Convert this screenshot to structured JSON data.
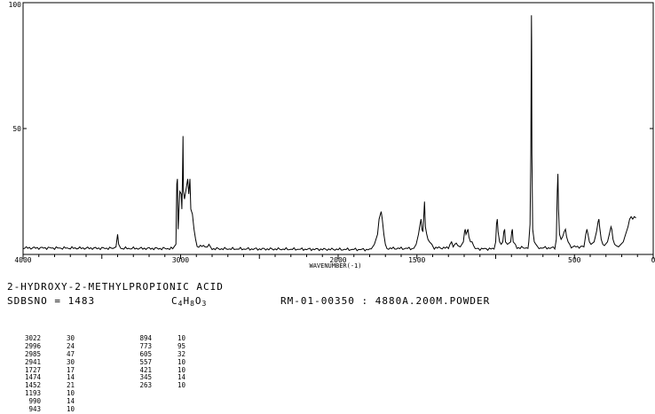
{
  "chart_data": {
    "type": "line",
    "title": "",
    "xlabel": "WAVENUMBER(-1)",
    "ylabel": "",
    "xlim": [
      4000,
      0
    ],
    "ylim": [
      0,
      100
    ],
    "x_ticks": [
      "4000",
      "3000",
      "2000",
      "1500",
      "500",
      "0"
    ],
    "x_tick_values": [
      4000,
      3000,
      2000,
      1500,
      500,
      0
    ],
    "y_ticks": [
      "100",
      "50"
    ],
    "y_tick_values": [
      100,
      50
    ],
    "peaks": [
      {
        "x": 3022,
        "y": 30
      },
      {
        "x": 2996,
        "y": 24
      },
      {
        "x": 2985,
        "y": 47
      },
      {
        "x": 2941,
        "y": 30
      },
      {
        "x": 1727,
        "y": 17
      },
      {
        "x": 1474,
        "y": 14
      },
      {
        "x": 1452,
        "y": 21
      },
      {
        "x": 1193,
        "y": 10
      },
      {
        "x": 990,
        "y": 14
      },
      {
        "x": 943,
        "y": 10
      },
      {
        "x": 894,
        "y": 10
      },
      {
        "x": 773,
        "y": 95
      },
      {
        "x": 605,
        "y": 32
      },
      {
        "x": 557,
        "y": 10
      },
      {
        "x": 421,
        "y": 10
      },
      {
        "x": 345,
        "y": 14
      },
      {
        "x": 263,
        "y": 10
      }
    ]
  },
  "compound_name": "2-HYDROXY-2-METHYLPROPIONIC ACID",
  "sdbs_label": "SDBSNO = 1483",
  "formula": {
    "c": "C",
    "c_n": "4",
    "h": "H",
    "h_n": "8",
    "o": "O",
    "o_n": "3"
  },
  "reference": "RM-01-00350 : 4880A.200M.POWDER",
  "peak_table": {
    "left": [
      {
        "wavenumber": "3022",
        "intensity": "30"
      },
      {
        "wavenumber": "2996",
        "intensity": "24"
      },
      {
        "wavenumber": "2985",
        "intensity": "47"
      },
      {
        "wavenumber": "2941",
        "intensity": "30"
      },
      {
        "wavenumber": "1727",
        "intensity": "17"
      },
      {
        "wavenumber": "1474",
        "intensity": "14"
      },
      {
        "wavenumber": "1452",
        "intensity": "21"
      },
      {
        "wavenumber": "1193",
        "intensity": "10"
      },
      {
        "wavenumber": "990",
        "intensity": "14"
      },
      {
        "wavenumber": "943",
        "intensity": "10"
      }
    ],
    "right": [
      {
        "wavenumber": "894",
        "intensity": "10"
      },
      {
        "wavenumber": "773",
        "intensity": "95"
      },
      {
        "wavenumber": "605",
        "intensity": "32"
      },
      {
        "wavenumber": "557",
        "intensity": "10"
      },
      {
        "wavenumber": "421",
        "intensity": "10"
      },
      {
        "wavenumber": "345",
        "intensity": "14"
      },
      {
        "wavenumber": "263",
        "intensity": "10"
      }
    ]
  }
}
